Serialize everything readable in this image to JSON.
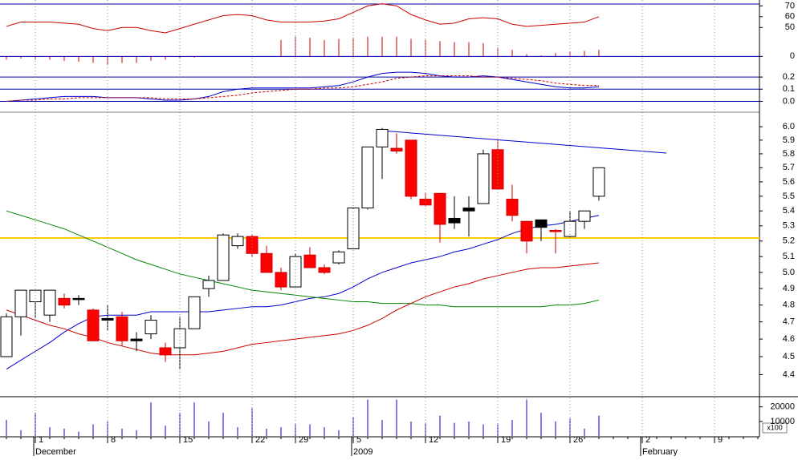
{
  "chart_data": [
    {
      "type": "line",
      "ylim": [
        13,
        74
      ],
      "yticks": [
        50,
        60,
        70
      ],
      "y2lim": [
        -1,
        5
      ],
      "y2ticks": [
        0
      ],
      "series": [
        {
          "color": "#cc0000",
          "values": [
            51,
            55,
            55,
            55,
            54,
            53,
            49,
            47,
            50,
            50,
            47,
            45,
            49,
            53,
            57,
            61,
            62,
            61,
            57,
            55,
            55,
            55,
            56,
            58,
            64,
            70,
            72,
            70,
            62,
            57,
            53,
            54,
            58,
            59,
            58,
            53,
            51,
            52,
            53,
            54,
            55,
            60
          ]
        },
        {
          "type": "bar",
          "axis": "y2",
          "color": "#cc0000",
          "values": [
            -0.3,
            -0.2,
            -0.3,
            -0.3,
            -0.4,
            -0.5,
            -0.6,
            -0.8,
            -0.6,
            -0.6,
            -0.4,
            -0.3,
            -0.2,
            -0.1,
            null,
            null,
            null,
            null,
            null,
            1.5,
            1.8,
            1.7,
            1.5,
            1.6,
            1.7,
            1.8,
            1.8,
            1.8,
            1.6,
            1.5,
            1.4,
            1.3,
            1.3,
            1.2,
            0.8,
            0.6,
            0.2,
            0.1,
            0.3,
            0.4,
            0.5,
            0.6
          ]
        }
      ]
    },
    {
      "type": "line",
      "ylim": [
        -0.01,
        0.28
      ],
      "yticks": [
        {
          "value": 0,
          "label": "0.0"
        },
        0.1,
        0.2
      ],
      "series": [
        {
          "color": "#0000cc",
          "values": [
            0.0,
            0.01,
            0.02,
            0.03,
            0.04,
            0.04,
            0.04,
            0.03,
            0.03,
            0.03,
            0.02,
            0.01,
            0.01,
            0.02,
            0.04,
            0.08,
            0.1,
            0.11,
            0.11,
            0.11,
            0.11,
            0.11,
            0.12,
            0.13,
            0.16,
            0.2,
            0.23,
            0.24,
            0.24,
            0.23,
            0.21,
            0.2,
            0.2,
            0.21,
            0.2,
            0.18,
            0.16,
            0.14,
            0.12,
            0.11,
            0.11,
            0.12
          ]
        },
        {
          "color": "#cc0000",
          "dash": true,
          "values": [
            0.0,
            0.01,
            0.01,
            0.02,
            0.02,
            0.03,
            0.03,
            0.03,
            0.03,
            0.03,
            0.03,
            0.02,
            0.02,
            0.02,
            0.03,
            0.04,
            0.05,
            0.07,
            0.08,
            0.09,
            0.1,
            0.1,
            0.11,
            0.11,
            0.12,
            0.14,
            0.16,
            0.19,
            0.2,
            0.21,
            0.21,
            0.21,
            0.21,
            0.2,
            0.2,
            0.19,
            0.18,
            0.17,
            0.15,
            0.14,
            0.13,
            0.13
          ]
        }
      ]
    },
    {
      "type": "candlestick",
      "log_scale": true,
      "ylim": [
        4.28,
        6.11
      ],
      "yticks": [
        4.4,
        4.5,
        4.6,
        4.7,
        4.8,
        4.9,
        {
          "value": 5,
          "label": "5.0"
        },
        5.1,
        5.2,
        5.3,
        5.4,
        5.5,
        5.6,
        5.7,
        5.8,
        5.9,
        {
          "value": 6,
          "label": "6.0"
        }
      ],
      "open": [
        4.5,
        4.73,
        4.82,
        4.74,
        4.84,
        4.84,
        4.77,
        4.72,
        4.73,
        4.6,
        4.63,
        4.55,
        4.55,
        4.66,
        4.9,
        4.95,
        5.23,
        5.23,
        5.12,
        5.0,
        4.91,
        5.11,
        5.03,
        5.06,
        5.15,
        5.42,
        5.85,
        5.84,
        5.9,
        5.48,
        5.52,
        5.35,
        5.42,
        5.45,
        5.83,
        5.48,
        5.33,
        5.34,
        5.27,
        5.23,
        5.33,
        5.5
      ],
      "high": [
        4.75,
        4.89,
        4.89,
        4.89,
        4.87,
        4.86,
        4.78,
        4.8,
        4.76,
        4.64,
        4.74,
        4.58,
        4.73,
        4.85,
        4.98,
        5.25,
        5.25,
        5.24,
        5.17,
        5.03,
        5.12,
        5.16,
        5.05,
        5.14,
        5.42,
        5.85,
        5.99,
        5.95,
        5.9,
        5.52,
        5.52,
        5.5,
        5.5,
        5.83,
        5.9,
        5.58,
        5.33,
        5.34,
        5.28,
        5.4,
        5.4,
        5.7
      ],
      "low": [
        4.5,
        4.62,
        4.72,
        4.7,
        4.78,
        4.8,
        4.59,
        4.65,
        4.56,
        4.53,
        4.6,
        4.47,
        4.43,
        4.66,
        4.85,
        4.95,
        5.15,
        5.1,
        5.0,
        4.89,
        4.91,
        5.03,
        4.99,
        5.05,
        5.15,
        5.41,
        5.62,
        5.8,
        5.48,
        5.43,
        5.19,
        5.28,
        5.23,
        5.45,
        5.55,
        5.33,
        5.12,
        5.2,
        5.12,
        5.22,
        5.28,
        5.47
      ],
      "close": [
        4.73,
        4.89,
        4.89,
        4.89,
        4.8,
        4.84,
        4.59,
        4.71,
        4.59,
        4.59,
        4.71,
        4.51,
        4.66,
        4.85,
        4.95,
        5.24,
        5.17,
        5.12,
        5.0,
        4.91,
        5.1,
        5.03,
        5.0,
        5.13,
        5.42,
        5.85,
        5.98,
        5.82,
        5.5,
        5.44,
        5.31,
        5.32,
        5.4,
        5.8,
        5.55,
        5.37,
        5.2,
        5.29,
        5.27,
        5.33,
        5.4,
        5.7
      ],
      "colors": [
        "#ffffff",
        "#ffffff",
        "#ffffff",
        "#ffffff",
        "#ff0000",
        "#000000",
        "#ff0000",
        "#000000",
        "#ff0000",
        "#000000",
        "#ffffff",
        "#ff0000",
        "#ffffff",
        "#ffffff",
        "#ffffff",
        "#ffffff",
        "#ffffff",
        "#ff0000",
        "#ff0000",
        "#ff0000",
        "#ffffff",
        "#ff0000",
        "#ff0000",
        "#ffffff",
        "#ffffff",
        "#ffffff",
        "#ffffff",
        "#ff0000",
        "#ff0000",
        "#ff0000",
        "#ff0000",
        "#000000",
        "#000000",
        "#ffffff",
        "#ff0000",
        "#ff0000",
        "#ff0000",
        "#000000",
        "#ff0000",
        "#ffffff",
        "#ffffff",
        "#ffffff"
      ],
      "lines": [
        {
          "color": "#0000cc",
          "values": [
            4.43,
            4.48,
            4.53,
            4.58,
            4.64,
            4.69,
            4.73,
            4.74,
            4.74,
            4.74,
            4.76,
            4.76,
            4.76,
            4.76,
            4.76,
            4.77,
            4.78,
            4.79,
            4.79,
            4.8,
            4.82,
            4.84,
            4.85,
            4.87,
            4.91,
            4.96,
            5.0,
            5.03,
            5.06,
            5.08,
            5.1,
            5.13,
            5.15,
            5.18,
            5.21,
            5.25,
            5.28,
            5.3,
            5.31,
            5.33,
            5.35,
            5.37
          ]
        },
        {
          "color": "#008800",
          "values": [
            5.4,
            5.37,
            5.34,
            5.31,
            5.28,
            5.24,
            5.2,
            5.16,
            5.12,
            5.08,
            5.05,
            5.02,
            4.99,
            4.97,
            4.95,
            4.93,
            4.91,
            4.89,
            4.88,
            4.87,
            4.86,
            4.85,
            4.84,
            4.83,
            4.82,
            4.82,
            4.81,
            4.81,
            4.81,
            4.8,
            4.8,
            4.79,
            4.79,
            4.79,
            4.79,
            4.79,
            4.79,
            4.79,
            4.8,
            4.8,
            4.81,
            4.83
          ]
        },
        {
          "color": "#cc0000",
          "values": [
            4.77,
            4.74,
            4.71,
            4.68,
            4.66,
            4.63,
            4.61,
            4.58,
            4.56,
            4.54,
            4.52,
            4.51,
            4.51,
            4.51,
            4.52,
            4.53,
            4.55,
            4.57,
            4.58,
            4.59,
            4.6,
            4.61,
            4.62,
            4.63,
            4.65,
            4.68,
            4.72,
            4.77,
            4.81,
            4.85,
            4.88,
            4.91,
            4.93,
            4.96,
            4.98,
            5.0,
            5.02,
            5.03,
            5.03,
            5.04,
            5.05,
            5.06
          ]
        }
      ],
      "hline": {
        "value": 5.22,
        "color": "#ffcc00"
      }
    },
    {
      "type": "bar",
      "color": "#0000cc",
      "ylim": [
        0,
        27000
      ],
      "yticks": [
        10000,
        20000
      ],
      "unit_label": "x100",
      "categories": [
        null,
        null,
        "1",
        null,
        null,
        null,
        null,
        "8",
        null,
        null,
        null,
        null,
        "15",
        null,
        null,
        null,
        null,
        "22",
        null,
        null,
        "29",
        null,
        null,
        null,
        "5",
        null,
        null,
        null,
        null,
        "12",
        null,
        null,
        null,
        null,
        "19",
        null,
        null,
        null,
        null,
        "26",
        null,
        null,
        null,
        null,
        "2",
        null,
        null,
        null,
        null,
        "9",
        null,
        null
      ],
      "month_labels": [
        null,
        null,
        "December",
        null,
        null,
        null,
        null,
        null,
        null,
        null,
        null,
        null,
        null,
        null,
        null,
        null,
        null,
        null,
        null,
        null,
        null,
        null,
        null,
        null,
        "2009",
        null,
        null,
        null,
        null,
        null,
        null,
        null,
        null,
        null,
        null,
        null,
        null,
        null,
        null,
        null,
        null,
        null,
        null,
        null,
        "February",
        null,
        null,
        null,
        null,
        null,
        null,
        null
      ],
      "values": [
        11000,
        4000,
        16000,
        6000,
        5000,
        3000,
        8000,
        10000,
        5000,
        4000,
        23000,
        7000,
        16000,
        23000,
        10000,
        16000,
        6000,
        19000,
        5000,
        6000,
        8000,
        8000,
        6000,
        4000,
        13000,
        25000,
        11000,
        25000,
        10000,
        9000,
        14000,
        9000,
        10000,
        8000,
        8000,
        11000,
        25000,
        16000,
        10000,
        12000,
        5000,
        14000,
        null,
        null,
        null,
        null,
        null,
        null,
        null,
        null,
        null,
        null
      ]
    }
  ]
}
